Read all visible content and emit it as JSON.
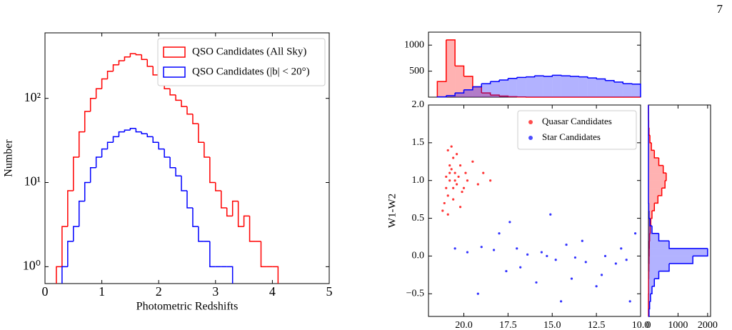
{
  "page_number": "7",
  "chart_data": [
    {
      "type": "histogram",
      "log_y": true,
      "x_label": "Photometric Redshifts",
      "y_label": "Number",
      "xlim": [
        0,
        5
      ],
      "xticks": [
        0,
        1,
        2,
        3,
        4,
        5
      ],
      "ylim": [
        0.63,
        600
      ],
      "yticks": [
        {
          "value": 1,
          "label": "10⁰"
        },
        {
          "value": 10,
          "label": "10¹"
        },
        {
          "value": 100,
          "label": "10²"
        }
      ],
      "legend": "upper right",
      "filled": false,
      "series": [
        {
          "name": "QSO Candidates (All Sky)",
          "color": "#ff0000",
          "bins": [
            0.2,
            0.3,
            0.4,
            0.5,
            0.6,
            0.7,
            0.8,
            0.9,
            1.0,
            1.1,
            1.2,
            1.3,
            1.4,
            1.5,
            1.6,
            1.7,
            1.8,
            1.9,
            2.0,
            2.1,
            2.2,
            2.3,
            2.4,
            2.5,
            2.6,
            2.7,
            2.8,
            2.9,
            3.0,
            3.1,
            3.2,
            3.3,
            3.4,
            3.5,
            3.6,
            3.7,
            3.8,
            3.9,
            4.0,
            4.1
          ],
          "values": [
            1,
            3,
            8,
            20,
            40,
            70,
            100,
            130,
            170,
            210,
            250,
            280,
            310,
            340,
            330,
            290,
            240,
            190,
            150,
            130,
            110,
            95,
            80,
            65,
            50,
            30,
            20,
            10,
            8,
            5,
            4,
            6,
            3,
            4,
            2,
            2,
            1,
            1,
            1
          ]
        },
        {
          "name": "QSO Candidates (|b| < 20°)",
          "color": "#0000ff",
          "bins": [
            0.3,
            0.4,
            0.5,
            0.6,
            0.7,
            0.8,
            0.9,
            1.0,
            1.1,
            1.2,
            1.3,
            1.4,
            1.5,
            1.6,
            1.7,
            1.8,
            1.9,
            2.0,
            2.1,
            2.2,
            2.3,
            2.4,
            2.5,
            2.6,
            2.7,
            2.8,
            2.9,
            3.0,
            3.1,
            3.2,
            3.3
          ],
          "values": [
            1,
            2,
            3,
            6,
            10,
            15,
            20,
            25,
            30,
            35,
            40,
            42,
            44,
            40,
            38,
            35,
            30,
            25,
            20,
            15,
            12,
            8,
            5,
            3,
            2,
            2,
            1,
            1,
            1,
            1
          ]
        }
      ]
    },
    {
      "type": "scatter",
      "y_label": "W1-W2",
      "xlim": [
        22,
        10
      ],
      "xticks": [
        {
          "value": 20,
          "label": "20.0"
        },
        {
          "value": 17.5,
          "label": "17.5"
        },
        {
          "value": 15,
          "label": "15.0"
        },
        {
          "value": 12.5,
          "label": "12.5"
        },
        {
          "value": 10,
          "label": "10.0"
        }
      ],
      "ylim": [
        -0.8,
        2.0
      ],
      "yticks": [
        {
          "value": -0.5,
          "label": "−0.5"
        },
        {
          "value": 0,
          "label": "0.0"
        },
        {
          "value": 0.5,
          "label": "0.5"
        },
        {
          "value": 1,
          "label": "1.0"
        },
        {
          "value": 1.5,
          "label": "1.5"
        },
        {
          "value": 2,
          "label": "2.0"
        }
      ],
      "legend": "upper right",
      "series": [
        {
          "name": "Quasar Candidates",
          "color": "#ff0000",
          "x": [
            20.8,
            21.0,
            20.5,
            20.2,
            20.9,
            20.6,
            19.8,
            21.1,
            20.4,
            20.7,
            19.5,
            20.1,
            20.9,
            20.3,
            21.2,
            20.6,
            19.9,
            20.8,
            20.0,
            20.5,
            18.9,
            20.7,
            21.0,
            20.2,
            19.2,
            20.4,
            20.9,
            20.6,
            18.5,
            20.8
          ],
          "values": [
            1.0,
            0.9,
            1.1,
            1.2,
            0.8,
            1.3,
            1.0,
            0.7,
            0.95,
            1.15,
            1.25,
            0.85,
            1.4,
            1.05,
            0.6,
            0.75,
            1.1,
            1.2,
            0.9,
            1.0,
            1.1,
            1.45,
            1.05,
            0.65,
            0.95,
            1.35,
            0.55,
            0.9,
            1.0,
            1.1
          ]
        },
        {
          "name": "Star Candidates",
          "color": "#0000ff",
          "x": [
            20.5,
            19.8,
            19.0,
            18.3,
            17.6,
            17.0,
            16.4,
            15.9,
            15.3,
            14.8,
            14.2,
            13.7,
            13.1,
            12.5,
            12.0,
            11.4,
            10.8,
            10.3,
            19.2,
            18.0,
            16.8,
            15.6,
            14.5,
            13.3,
            12.2,
            11.1,
            17.4,
            15.1,
            13.9,
            10.6
          ],
          "values": [
            0.1,
            0.05,
            0.12,
            0.08,
            -0.2,
            0.1,
            0.02,
            -0.35,
            0.0,
            -0.05,
            0.15,
            -0.02,
            -0.08,
            -0.4,
            0.0,
            -0.1,
            -0.05,
            0.3,
            -0.5,
            0.3,
            -0.15,
            0.05,
            -0.6,
            0.2,
            -0.25,
            0.1,
            0.45,
            0.55,
            -0.3,
            -0.6
          ]
        }
      ]
    },
    {
      "type": "histogram",
      "filled": true,
      "xlim": [
        22,
        10
      ],
      "ylim": [
        0,
        1250
      ],
      "yticks": [
        500,
        1000
      ],
      "series": [
        {
          "color": "#ff0000",
          "bins": [
            10,
            10.5,
            11,
            11.5,
            12,
            12.5,
            13,
            13.5,
            14,
            14.5,
            15,
            15.5,
            16,
            16.5,
            17,
            17.5,
            18,
            18.5,
            19,
            19.5,
            20,
            20.5,
            21,
            21.5
          ],
          "values": [
            0,
            0,
            0,
            0,
            0,
            0,
            0,
            0,
            0,
            0,
            0,
            0,
            0,
            3,
            8,
            20,
            40,
            80,
            200,
            400,
            600,
            1100,
            300
          ]
        },
        {
          "color": "#0000ff",
          "bins": [
            10,
            10.5,
            11,
            11.5,
            12,
            12.5,
            13,
            13.5,
            14,
            14.5,
            15,
            15.5,
            16,
            16.5,
            17,
            17.5,
            18,
            18.5,
            19,
            19.5,
            20,
            20.5,
            21,
            21.5
          ],
          "values": [
            250,
            260,
            290,
            320,
            350,
            370,
            390,
            400,
            410,
            420,
            400,
            410,
            390,
            380,
            360,
            330,
            300,
            260,
            200,
            140,
            80,
            30,
            5
          ]
        }
      ]
    },
    {
      "type": "histogram",
      "filled": true,
      "orientation": "horizontal",
      "xlim": [
        0,
        2100
      ],
      "xticks": [
        0,
        1000,
        2000
      ],
      "ylim": [
        -0.8,
        2.0
      ],
      "series": [
        {
          "color": "#ff0000",
          "bins": [
            -0.8,
            -0.7,
            -0.6,
            -0.5,
            -0.4,
            -0.3,
            -0.2,
            -0.1,
            0,
            0.1,
            0.2,
            0.3,
            0.4,
            0.5,
            0.6,
            0.7,
            0.8,
            0.9,
            1.0,
            1.1,
            1.2,
            1.3,
            1.4,
            1.5,
            1.6,
            1.7,
            1.8,
            1.9,
            2.0
          ],
          "values": [
            0,
            0,
            0,
            5,
            5,
            10,
            15,
            20,
            25,
            30,
            40,
            60,
            80,
            120,
            200,
            320,
            450,
            560,
            600,
            500,
            350,
            200,
            100,
            50,
            20,
            8,
            2,
            0
          ]
        },
        {
          "color": "#0000ff",
          "bins": [
            -0.8,
            -0.7,
            -0.6,
            -0.5,
            -0.4,
            -0.3,
            -0.2,
            -0.1,
            0,
            0.1,
            0.2,
            0.3,
            0.4,
            0.5,
            0.6,
            0.7,
            0.8,
            0.9,
            1.0,
            1.1,
            1.2,
            1.3,
            1.4,
            1.5,
            1.6,
            1.7,
            1.8,
            1.9,
            2.0
          ],
          "values": [
            20,
            40,
            70,
            120,
            200,
            350,
            700,
            1500,
            2000,
            700,
            350,
            120,
            50,
            20,
            10,
            0,
            0,
            0,
            0,
            0,
            0,
            0,
            0,
            0,
            0,
            0,
            0,
            0
          ]
        }
      ]
    }
  ]
}
